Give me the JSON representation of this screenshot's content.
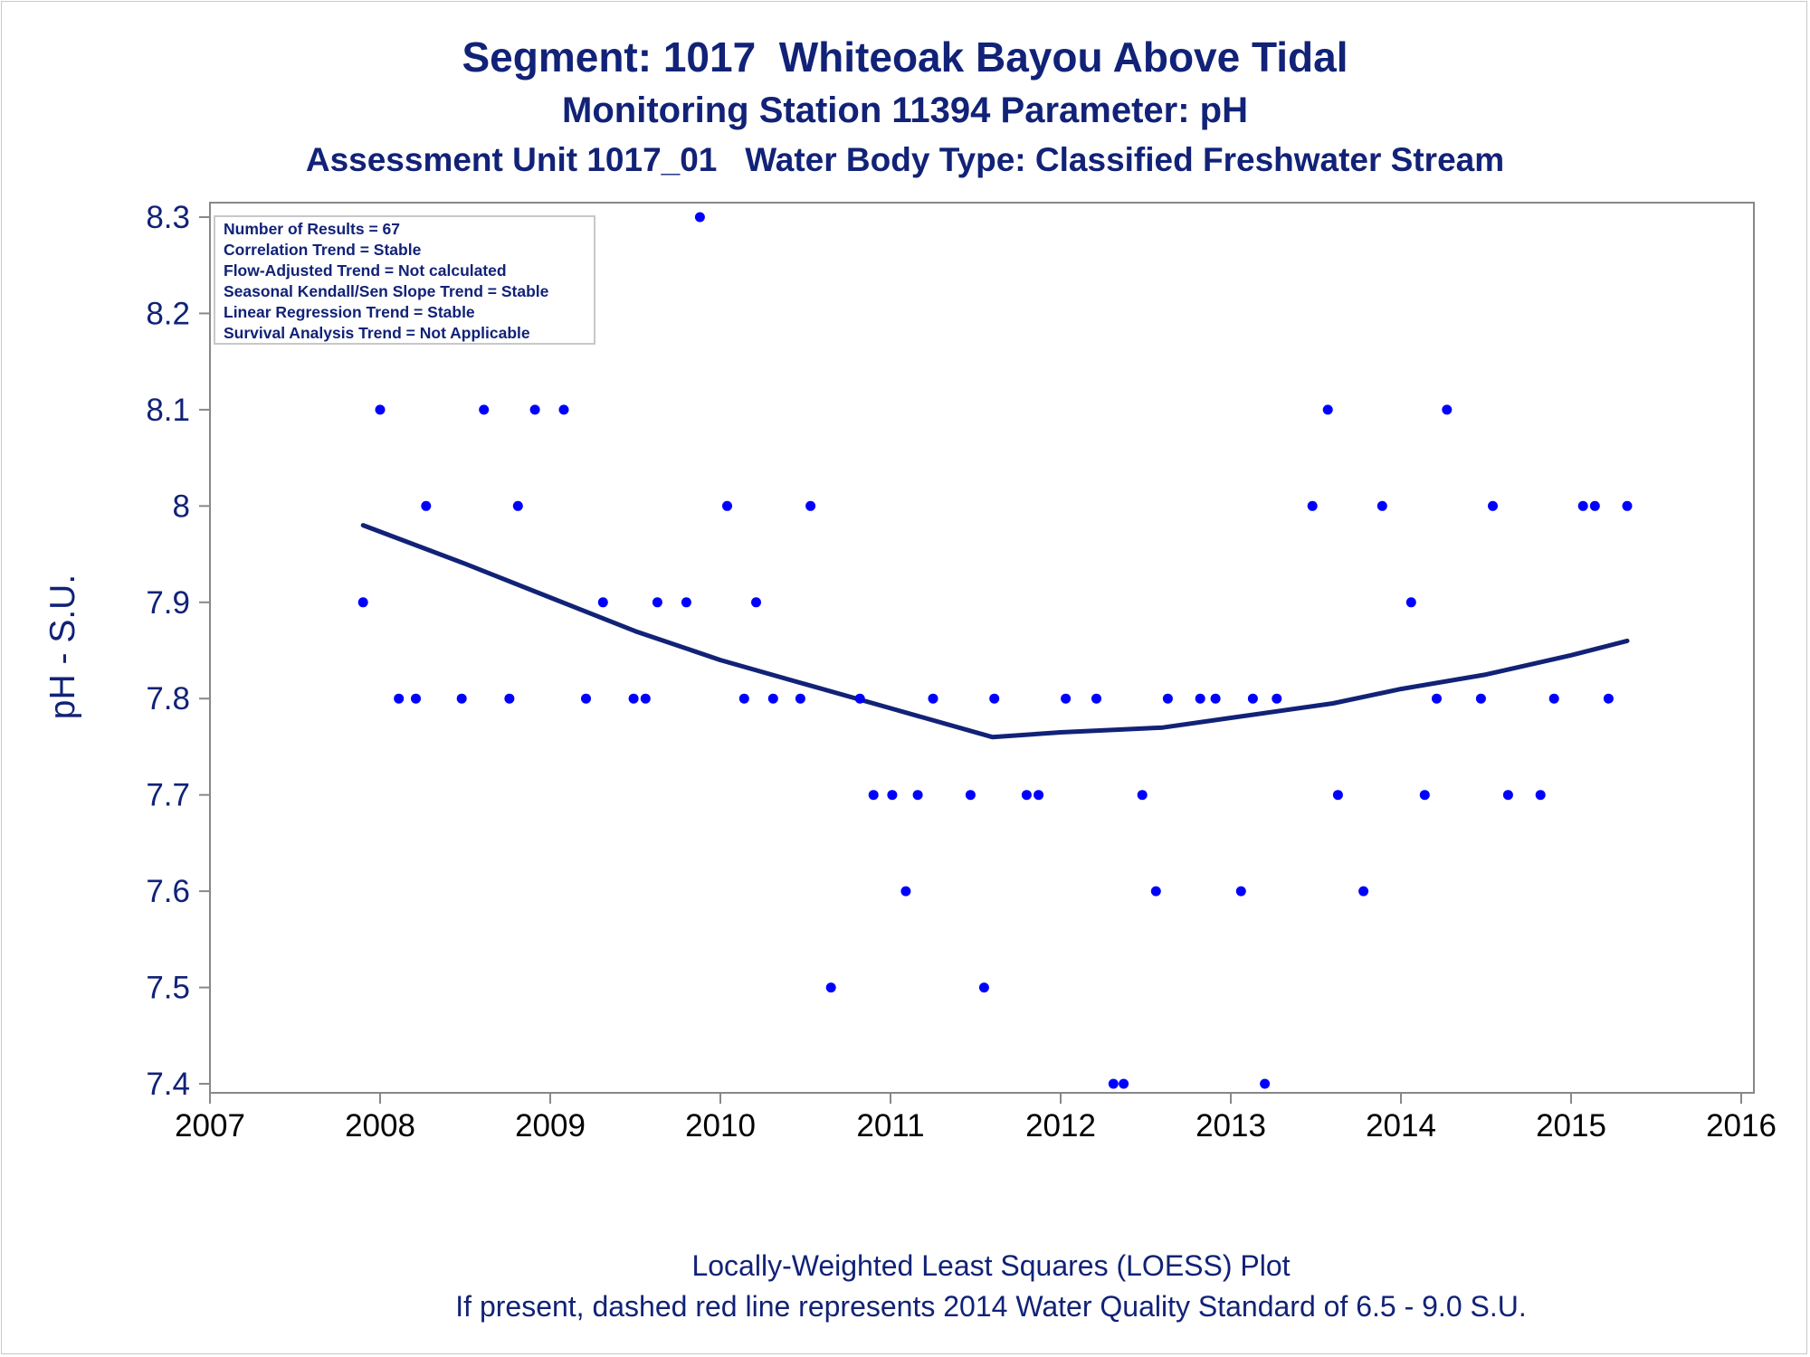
{
  "title": {
    "line1": "Segment: 1017  Whiteoak Bayou Above Tidal",
    "line2": "Monitoring Station 11394 Parameter: pH",
    "line3": "Assessment Unit 1017_01   Water Body Type: Classified Freshwater Stream"
  },
  "footer": {
    "line1": "Locally-Weighted Least Squares (LOESS) Plot",
    "line2": "If present, dashed red line represents 2014 Water Quality Standard of 6.5 - 9.0 S.U."
  },
  "stats_box": {
    "lines": [
      "Number of Results = 67",
      "Correlation Trend = Stable",
      "Flow-Adjusted Trend = Not calculated",
      "Seasonal Kendall/Sen Slope Trend = Stable",
      "Linear Regression Trend = Stable",
      "Survival Analysis Trend = Not Applicable"
    ]
  },
  "colors": {
    "points": "#0000ff",
    "loess_line": "#112277",
    "text": "#112277",
    "axis": "#888888"
  },
  "chart_data": {
    "type": "scatter",
    "title": "Segment: 1017  Whiteoak Bayou Above Tidal",
    "xlabel": "",
    "ylabel": "pH - S.U.",
    "xlim": [
      2007,
      2016
    ],
    "ylim": [
      7.4,
      8.3
    ],
    "x_ticks": [
      "2007",
      "2008",
      "2009",
      "2010",
      "2011",
      "2012",
      "2013",
      "2014",
      "2015",
      "2016"
    ],
    "y_ticks": [
      "7.4",
      "7.5",
      "7.6",
      "7.7",
      "7.8",
      "7.9",
      "8",
      "8.1",
      "8.2",
      "8.3"
    ],
    "grid": false,
    "points": [
      [
        2007.9,
        7.9
      ],
      [
        2008.0,
        8.1
      ],
      [
        2008.11,
        7.8
      ],
      [
        2008.21,
        7.8
      ],
      [
        2008.27,
        8.0
      ],
      [
        2008.48,
        7.8
      ],
      [
        2008.61,
        8.1
      ],
      [
        2008.76,
        7.8
      ],
      [
        2008.81,
        8.0
      ],
      [
        2008.91,
        8.1
      ],
      [
        2009.08,
        8.1
      ],
      [
        2009.21,
        7.8
      ],
      [
        2009.31,
        7.9
      ],
      [
        2009.49,
        7.8
      ],
      [
        2009.56,
        7.8
      ],
      [
        2009.63,
        7.9
      ],
      [
        2009.8,
        7.9
      ],
      [
        2009.88,
        8.3
      ],
      [
        2010.04,
        8.0
      ],
      [
        2010.14,
        7.8
      ],
      [
        2010.21,
        7.9
      ],
      [
        2010.31,
        7.8
      ],
      [
        2010.47,
        7.8
      ],
      [
        2010.53,
        8.0
      ],
      [
        2010.65,
        7.5
      ],
      [
        2010.82,
        7.8
      ],
      [
        2010.9,
        7.7
      ],
      [
        2011.01,
        7.7
      ],
      [
        2011.09,
        7.6
      ],
      [
        2011.16,
        7.7
      ],
      [
        2011.25,
        7.8
      ],
      [
        2011.47,
        7.7
      ],
      [
        2011.55,
        7.5
      ],
      [
        2011.61,
        7.8
      ],
      [
        2011.8,
        7.7
      ],
      [
        2011.87,
        7.7
      ],
      [
        2012.03,
        7.8
      ],
      [
        2012.21,
        7.8
      ],
      [
        2012.31,
        7.4
      ],
      [
        2012.37,
        7.4
      ],
      [
        2012.48,
        7.7
      ],
      [
        2012.56,
        7.6
      ],
      [
        2012.63,
        7.8
      ],
      [
        2012.82,
        7.8
      ],
      [
        2012.91,
        7.8
      ],
      [
        2013.06,
        7.6
      ],
      [
        2013.13,
        7.8
      ],
      [
        2013.2,
        7.4
      ],
      [
        2013.27,
        7.8
      ],
      [
        2013.48,
        8.0
      ],
      [
        2013.57,
        8.1
      ],
      [
        2013.63,
        7.7
      ],
      [
        2013.78,
        7.6
      ],
      [
        2013.89,
        8.0
      ],
      [
        2014.06,
        7.9
      ],
      [
        2014.14,
        7.7
      ],
      [
        2014.21,
        7.8
      ],
      [
        2014.27,
        8.1
      ],
      [
        2014.47,
        7.8
      ],
      [
        2014.54,
        8.0
      ],
      [
        2014.63,
        7.7
      ],
      [
        2014.82,
        7.7
      ],
      [
        2014.9,
        7.8
      ],
      [
        2015.07,
        8.0
      ],
      [
        2015.14,
        8.0
      ],
      [
        2015.22,
        7.8
      ],
      [
        2015.33,
        8.0
      ]
    ],
    "loess": [
      [
        2007.9,
        7.98
      ],
      [
        2008.5,
        7.94
      ],
      [
        2009.0,
        7.905
      ],
      [
        2009.5,
        7.87
      ],
      [
        2010.0,
        7.84
      ],
      [
        2010.5,
        7.815
      ],
      [
        2011.0,
        7.79
      ],
      [
        2011.6,
        7.76
      ],
      [
        2012.0,
        7.765
      ],
      [
        2012.6,
        7.77
      ],
      [
        2013.0,
        7.78
      ],
      [
        2013.6,
        7.795
      ],
      [
        2014.0,
        7.81
      ],
      [
        2014.5,
        7.825
      ],
      [
        2015.0,
        7.845
      ],
      [
        2015.33,
        7.86
      ]
    ]
  }
}
